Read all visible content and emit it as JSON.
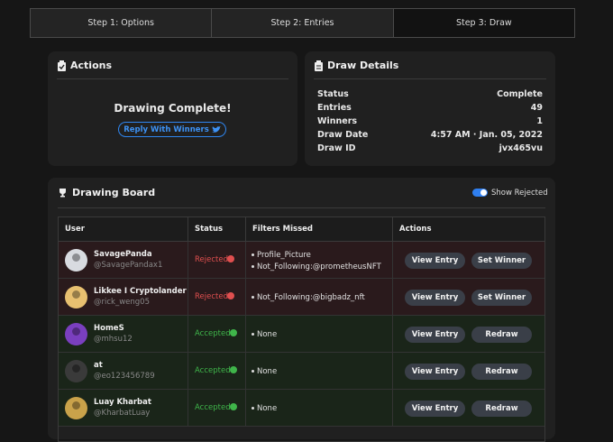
{
  "tabs": [
    "Step 1: Options",
    "Step 2: Entries",
    "Step 3: Draw"
  ],
  "actions": {
    "title": "Actions",
    "status": "Drawing Complete!",
    "button": "Reply With Winners"
  },
  "draw_details": {
    "title": "Draw Details",
    "rows": [
      [
        "Status",
        "Complete"
      ],
      [
        "Entries",
        "49"
      ],
      [
        "Winners",
        "1"
      ],
      [
        "Draw Date",
        "4:57 AM · Jan. 05, 2022"
      ],
      [
        "Draw ID",
        "jvx465vu"
      ]
    ]
  },
  "board": {
    "title": "Drawing Board",
    "toggle_label": "Show Rejected",
    "columns": [
      "User",
      "Status",
      "Filters Missed",
      "Actions"
    ],
    "rows": [
      {
        "name": "SavagePanda",
        "handle": "@SavagePandax1",
        "status": "Rejected",
        "filters": [
          "Profile_Picture",
          "Not_Following:@prometheusNFT"
        ],
        "actions": [
          "View Entry",
          "Set Winner"
        ]
      },
      {
        "name": "Likkee I Cryptolander",
        "handle": "@rick_weng05",
        "status": "Rejected",
        "filters": [
          "Not_Following:@bigbadz_nft"
        ],
        "actions": [
          "View Entry",
          "Set Winner"
        ]
      },
      {
        "name": "HomeS",
        "handle": "@mhsu12",
        "status": "Accepted",
        "filters": [
          "None"
        ],
        "actions": [
          "View Entry",
          "Redraw"
        ]
      },
      {
        "name": "at",
        "handle": "@eo123456789",
        "status": "Accepted",
        "filters": [
          "None"
        ],
        "actions": [
          "View Entry",
          "Redraw"
        ]
      },
      {
        "name": "Luay Kharbat",
        "handle": "@KharbatLuay",
        "status": "Accepted",
        "filters": [
          "None"
        ],
        "actions": [
          "View Entry",
          "Redraw"
        ]
      }
    ]
  }
}
